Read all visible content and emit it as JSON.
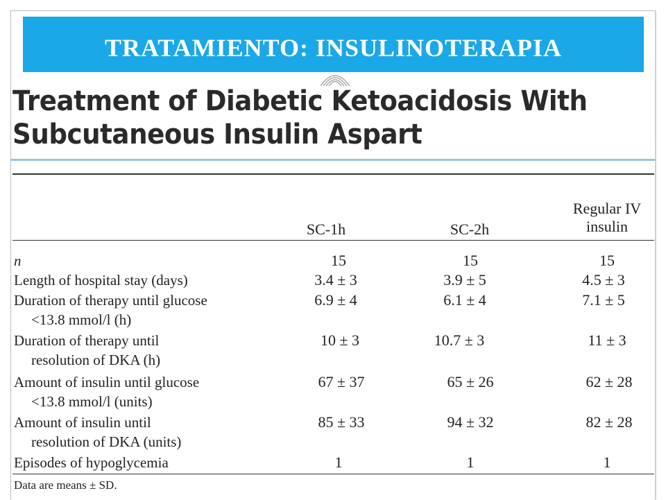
{
  "slide": {
    "banner_title": "TRATAMIENTO: INSULINOTERAPIA"
  },
  "article": {
    "title_line1": "Treatment of Diabetic Ketoacidosis With",
    "title_line2": "Subcutaneous Insulin Aspart"
  },
  "table": {
    "columns": {
      "sc1h": "SC-1h",
      "sc2h": "SC-2h",
      "regular_line1": "Regular IV",
      "regular_line2": "insulin"
    },
    "rows": [
      {
        "label_line1": "n",
        "label_line2": "",
        "sc1h": "15",
        "sc2h": "15",
        "regular": "15"
      },
      {
        "label_line1": "Length of hospital stay (days)",
        "label_line2": "",
        "sc1h": "3.4 ± 3",
        "sc2h": "3.9 ± 5",
        "regular": "4.5 ± 3"
      },
      {
        "label_line1": "Duration of therapy until glucose",
        "label_line2": "<13.8 mmol/l (h)",
        "sc1h": "6.9 ± 4",
        "sc2h": "6.1 ± 4",
        "regular": "7.1 ± 5"
      },
      {
        "label_line1": "Duration of therapy until",
        "label_line2": "resolution of DKA (h)",
        "sc1h": "10 ± 3",
        "sc2h": "10.7 ± 3",
        "regular": "11 ± 3"
      },
      {
        "label_line1": "Amount of insulin until glucose",
        "label_line2": "<13.8 mmol/l (units)",
        "sc1h": "67 ± 37",
        "sc2h": "65 ± 26",
        "regular": "62 ± 28"
      },
      {
        "label_line1": "Amount of insulin until",
        "label_line2": "resolution of DKA (units)",
        "sc1h": "85 ± 33",
        "sc2h": "94 ± 32",
        "regular": "82 ± 28"
      },
      {
        "label_line1": "Episodes of hypoglycemia",
        "label_line2": "",
        "sc1h": "1",
        "sc2h": "1",
        "regular": "1"
      }
    ],
    "footnote": "Data are means ± SD."
  }
}
